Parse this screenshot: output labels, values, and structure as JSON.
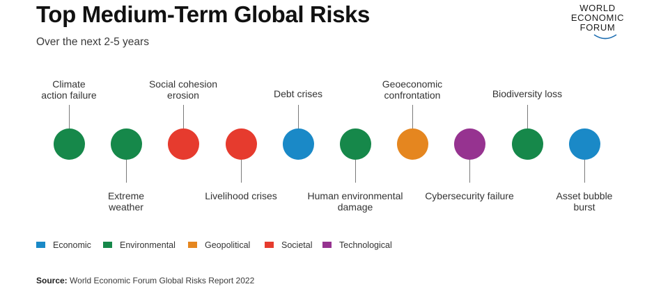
{
  "title": "Top Medium-Term Global Risks",
  "subtitle": "Over the next 2-5 years",
  "logo": {
    "line1": "WORLD",
    "line2": "ECONOMIC",
    "line3": "FORUM"
  },
  "categories": {
    "economic": {
      "label": "Economic",
      "color": "#1a89c7"
    },
    "environmental": {
      "label": "Environmental",
      "color": "#16884a"
    },
    "geopolitical": {
      "label": "Geopolitical",
      "color": "#e5861f"
    },
    "societal": {
      "label": "Societal",
      "color": "#e63b2e"
    },
    "technological": {
      "label": "Technological",
      "color": "#963390"
    }
  },
  "risks": [
    {
      "label": "Climate\naction failure",
      "category": "environmental",
      "label_position": "above"
    },
    {
      "label": "Extreme\nweather",
      "category": "environmental",
      "label_position": "below"
    },
    {
      "label": "Social cohesion\nerosion",
      "category": "societal",
      "label_position": "above"
    },
    {
      "label": "Livelihood crises",
      "category": "societal",
      "label_position": "below"
    },
    {
      "label": "Debt crises",
      "category": "economic",
      "label_position": "above"
    },
    {
      "label": "Human environmental\ndamage",
      "category": "environmental",
      "label_position": "below"
    },
    {
      "label": "Geoeconomic\nconfrontation",
      "category": "geopolitical",
      "label_position": "above"
    },
    {
      "label": "Cybersecurity failure",
      "category": "technological",
      "label_position": "below"
    },
    {
      "label": "Biodiversity loss",
      "category": "environmental",
      "label_position": "above"
    },
    {
      "label": "Asset bubble\nburst",
      "category": "economic",
      "label_position": "below"
    }
  ],
  "legend": [
    {
      "label": "Economic",
      "category": "economic"
    },
    {
      "label": "Environmental",
      "category": "environmental"
    },
    {
      "label": "Geopolitical",
      "category": "geopolitical"
    },
    {
      "label": "Societal",
      "category": "societal"
    },
    {
      "label": "Technological",
      "category": "technological"
    }
  ],
  "source": {
    "prefix": "Source:",
    "text": "World Economic Forum Global Risks Report 2022"
  }
}
